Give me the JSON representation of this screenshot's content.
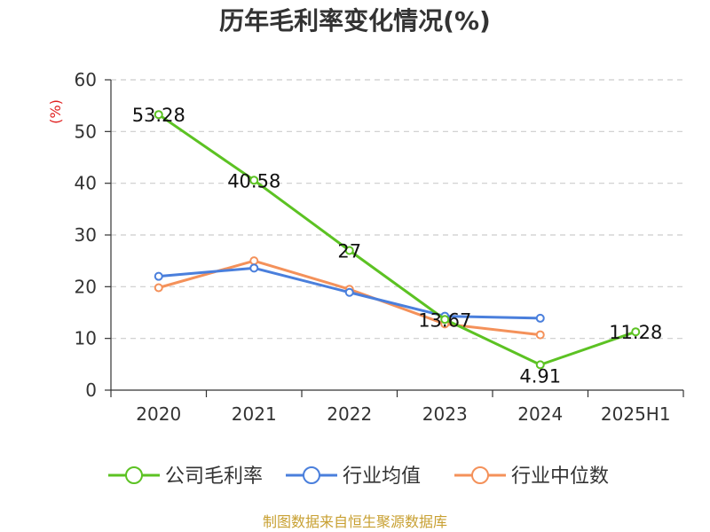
{
  "chart_data": {
    "type": "line",
    "title": "历年毛利率变化情况(%)",
    "unit_label": "(%)",
    "categories": [
      "2020",
      "2021",
      "2022",
      "2023",
      "2024",
      "2025H1"
    ],
    "y_ticks": [
      "0",
      "10",
      "20",
      "30",
      "40",
      "50",
      "60"
    ],
    "ylim": [
      0,
      60
    ],
    "grid": true,
    "legend_position": "bottom",
    "series": [
      {
        "name": "公司毛利率",
        "color": "#5cc223",
        "values": [
          53.28,
          40.58,
          27,
          13.67,
          4.91,
          11.28
        ],
        "labels": [
          "53.28",
          "40.58",
          "27",
          "13.67",
          "4.91",
          "11.28"
        ]
      },
      {
        "name": "行业均值",
        "color": "#4a7fdc",
        "values": [
          22,
          23.6,
          18.9,
          14.3,
          13.9,
          null
        ]
      },
      {
        "name": "行业中位数",
        "color": "#f4915a",
        "values": [
          19.8,
          25,
          19.5,
          12.8,
          10.7,
          null
        ]
      }
    ]
  },
  "source": "制图数据来自恒生聚源数据库"
}
